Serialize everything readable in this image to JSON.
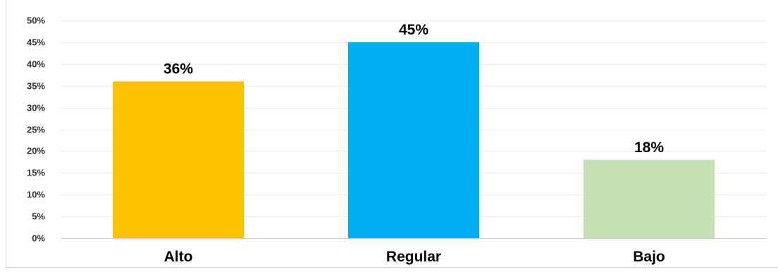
{
  "chart_data": {
    "type": "bar",
    "title": "",
    "xlabel": "",
    "ylabel": "",
    "categories": [
      "Alto",
      "Regular",
      "Bajo"
    ],
    "values": [
      36,
      45,
      18
    ],
    "value_labels": [
      "36%",
      "45%",
      "18%"
    ],
    "colors": [
      "#FFC000",
      "#00B0F0",
      "#C5E0B4"
    ],
    "ylim": [
      0,
      50
    ],
    "yticks": [
      0,
      5,
      10,
      15,
      20,
      25,
      30,
      35,
      40,
      45,
      50
    ],
    "ytick_labels": [
      "0%",
      "5%",
      "10%",
      "15%",
      "20%",
      "25%",
      "30%",
      "35%",
      "40%",
      "45%",
      "50%"
    ],
    "grid": true,
    "legend": "none"
  }
}
